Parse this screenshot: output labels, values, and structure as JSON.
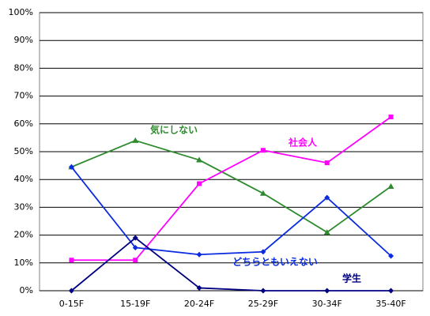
{
  "chart_data": {
    "type": "line",
    "categories": [
      "0-15F",
      "15-19F",
      "20-24F",
      "25-29F",
      "30-34F",
      "35-40F"
    ],
    "series": [
      {
        "name": "気にしない",
        "color": "#2e8b2e",
        "marker": "triangle",
        "values": [
          44.5,
          54,
          47,
          35,
          21,
          37.5
        ]
      },
      {
        "name": "社会人",
        "color": "#ff00ff",
        "marker": "square",
        "values": [
          11,
          11,
          38.5,
          50.5,
          46,
          62.5
        ]
      },
      {
        "name": "どちらともいえない",
        "color": "#0a2be0",
        "marker": "diamond",
        "values": [
          44.5,
          15.5,
          13,
          14,
          33.5,
          12.5
        ]
      },
      {
        "name": "学生",
        "color": "#000080",
        "marker": "diamond",
        "values": [
          0,
          19,
          1,
          0,
          0,
          0
        ]
      }
    ],
    "ylim": [
      0,
      100
    ],
    "yticks": [
      {
        "value": 0,
        "label": "0%"
      },
      {
        "value": 10,
        "label": "10%"
      },
      {
        "value": 20,
        "label": "20%"
      },
      {
        "value": 30,
        "label": "30%"
      },
      {
        "value": 40,
        "label": "40%"
      },
      {
        "value": 50,
        "label": "50%"
      },
      {
        "value": 60,
        "label": "60%"
      },
      {
        "value": 70,
        "label": "70%"
      },
      {
        "value": 80,
        "label": "80%"
      },
      {
        "value": 90,
        "label": "90%"
      },
      {
        "value": 100,
        "label": "100%"
      }
    ],
    "grid": true
  }
}
